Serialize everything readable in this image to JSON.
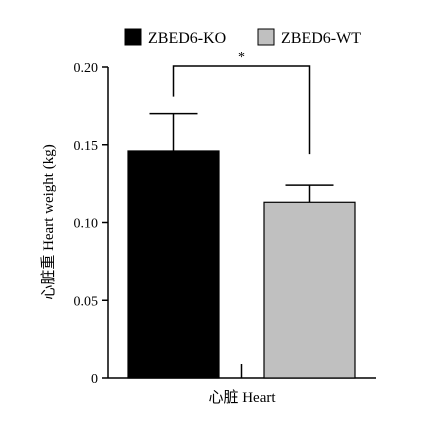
{
  "chart_data": {
    "type": "bar",
    "ylabel": "心脏重 Heart weight (kg)",
    "xlabel": "心脏 Heart",
    "ylim": [
      0,
      0.2
    ],
    "yticks": [
      "0",
      "0.05",
      "0.10",
      "0.15",
      "0.20"
    ],
    "categories": [
      "心脏 Heart"
    ],
    "series": [
      {
        "name": "ZBED6-KO",
        "values": [
          0.146
        ],
        "error": [
          0.024
        ],
        "color": "#000000"
      },
      {
        "name": "ZBED6-WT",
        "values": [
          0.113
        ],
        "error": [
          0.011
        ],
        "color": "#c0c0c0"
      }
    ],
    "significance": {
      "label": "*",
      "between": [
        "ZBED6-KO",
        "ZBED6-WT"
      ]
    },
    "legend": "top"
  }
}
